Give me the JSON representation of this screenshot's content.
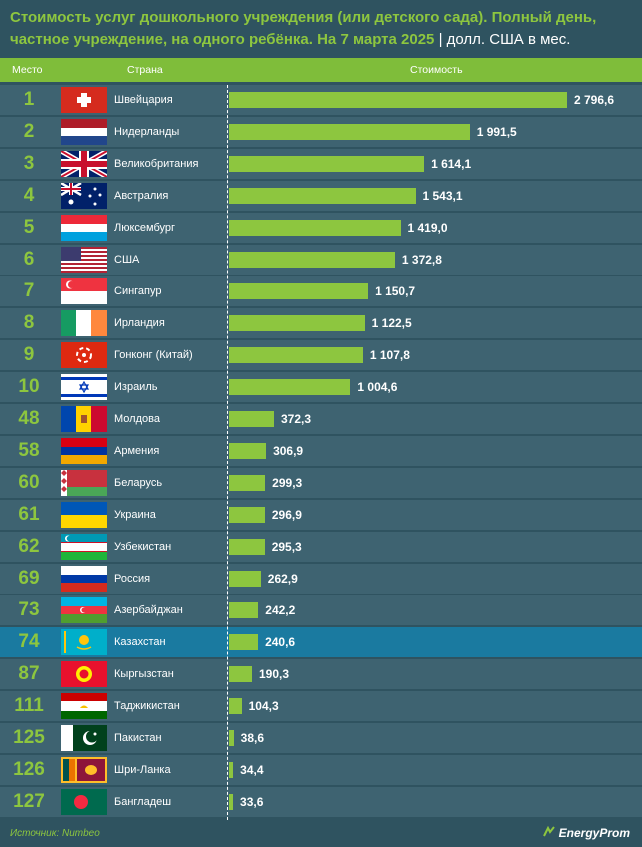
{
  "header": {
    "title_main": "Стоимость услуг дошкольного учреждения (или детского сада). Полный день, частное учреждение, на одного ребёнка. На 7 марта 2025",
    "title_unit": "| долл. США в мес.",
    "col_rank": "Место",
    "col_country": "Страна",
    "col_value": "Стоимость"
  },
  "footer": {
    "source": "Источник: Numbeo",
    "brand": "EnergyProm"
  },
  "colors": {
    "background": "#2f5360",
    "row": "#3e6371",
    "highlight": "#1a7aa0",
    "accent": "#8dc63f"
  },
  "chart_data": {
    "type": "bar",
    "orientation": "horizontal",
    "title": "Стоимость услуг дошкольного учреждения (или детского сада). Полный день, частное учреждение, на одного ребёнка. На 7 марта 2025",
    "xlim": [
      0,
      2796.6
    ],
    "grid": false,
    "highlight": "Казахстан",
    "rows": [
      {
        "rank": "1",
        "country": "Швейцария",
        "value": 2796.6,
        "label": "2 796,6",
        "flag": "switzerland-flag-icon"
      },
      {
        "rank": "2",
        "country": "Нидерланды",
        "value": 1991.5,
        "label": "1 991,5",
        "flag": "netherlands-flag-icon"
      },
      {
        "rank": "3",
        "country": "Великобритания",
        "value": 1614.1,
        "label": "1 614,1",
        "flag": "uk-flag-icon"
      },
      {
        "rank": "4",
        "country": "Австралия",
        "value": 1543.1,
        "label": "1 543,1",
        "flag": "australia-flag-icon"
      },
      {
        "rank": "5",
        "country": "Люксембург",
        "value": 1419.0,
        "label": "1 419,0",
        "flag": "luxembourg-flag-icon"
      },
      {
        "rank": "6",
        "country": "США",
        "value": 1372.8,
        "label": "1 372,8",
        "flag": "usa-flag-icon"
      },
      {
        "rank": "7",
        "country": "Сингапур",
        "value": 1150.7,
        "label": "1 150,7",
        "flag": "singapore-flag-icon"
      },
      {
        "rank": "8",
        "country": "Ирландия",
        "value": 1122.5,
        "label": "1 122,5",
        "flag": "ireland-flag-icon"
      },
      {
        "rank": "9",
        "country": "Гонконг (Китай)",
        "value": 1107.8,
        "label": "1 107,8",
        "flag": "hong-kong-flag-icon"
      },
      {
        "rank": "10",
        "country": "Израиль",
        "value": 1004.6,
        "label": "1 004,6",
        "flag": "israel-flag-icon"
      },
      {
        "rank": "48",
        "country": "Молдова",
        "value": 372.3,
        "label": "372,3",
        "flag": "moldova-flag-icon"
      },
      {
        "rank": "58",
        "country": "Армения",
        "value": 306.9,
        "label": "306,9",
        "flag": "armenia-flag-icon"
      },
      {
        "rank": "60",
        "country": "Беларусь",
        "value": 299.3,
        "label": "299,3",
        "flag": "belarus-flag-icon"
      },
      {
        "rank": "61",
        "country": "Украина",
        "value": 296.9,
        "label": "296,9",
        "flag": "ukraine-flag-icon"
      },
      {
        "rank": "62",
        "country": "Узбекистан",
        "value": 295.3,
        "label": "295,3",
        "flag": "uzbekistan-flag-icon"
      },
      {
        "rank": "69",
        "country": "Россия",
        "value": 262.9,
        "label": "262,9",
        "flag": "russia-flag-icon"
      },
      {
        "rank": "73",
        "country": "Азербайджан",
        "value": 242.2,
        "label": "242,2",
        "flag": "azerbaijan-flag-icon"
      },
      {
        "rank": "74",
        "country": "Казахстан",
        "value": 240.6,
        "label": "240,6",
        "flag": "kazakhstan-flag-icon"
      },
      {
        "rank": "87",
        "country": "Кыргызстан",
        "value": 190.3,
        "label": "190,3",
        "flag": "kyrgyzstan-flag-icon"
      },
      {
        "rank": "111",
        "country": "Таджикистан",
        "value": 104.3,
        "label": "104,3",
        "flag": "tajikistan-flag-icon"
      },
      {
        "rank": "125",
        "country": "Пакистан",
        "value": 38.6,
        "label": "38,6",
        "flag": "pakistan-flag-icon"
      },
      {
        "rank": "126",
        "country": "Шри-Ланка",
        "value": 34.4,
        "label": "34,4",
        "flag": "sri-lanka-flag-icon"
      },
      {
        "rank": "127",
        "country": "Бангладеш",
        "value": 33.6,
        "label": "33,6",
        "flag": "bangladesh-flag-icon"
      }
    ]
  }
}
